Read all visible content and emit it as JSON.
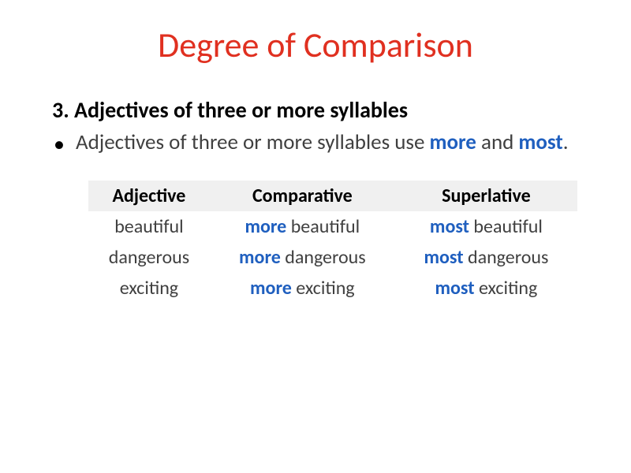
{
  "title": {
    "text": "Degree of Comparison",
    "color": "#e03020",
    "fontsize": 44
  },
  "item": {
    "number": "3.",
    "heading": "Adjectives of three or more syllables",
    "heading_color": "#000000",
    "heading_fontsize": 28
  },
  "bullet": {
    "prefix": "Adjectives of three or more syllables use ",
    "kw1": "more",
    "mid": " and ",
    "kw2": "most",
    "suffix": ".",
    "kw_color": "#1f5fbf",
    "text_color": "#404040",
    "fontsize": 27
  },
  "table": {
    "header_bg": "#f0f0f0",
    "header_color": "#000000",
    "cell_color": "#404040",
    "kw_color": "#1f5fbf",
    "columns": [
      "Adjective",
      "Comparative",
      "Superlative"
    ],
    "rows": [
      {
        "adj": "beautiful",
        "comp_kw": "more",
        "comp_rest": " beautiful",
        "sup_kw": "most",
        "sup_rest": " beautiful"
      },
      {
        "adj": "dangerous",
        "comp_kw": "more",
        "comp_rest": " dangerous",
        "sup_kw": "most",
        "sup_rest": " dangerous"
      },
      {
        "adj": "exciting",
        "comp_kw": "more",
        "comp_rest": " exciting",
        "sup_kw": "most",
        "sup_rest": " exciting"
      }
    ]
  }
}
